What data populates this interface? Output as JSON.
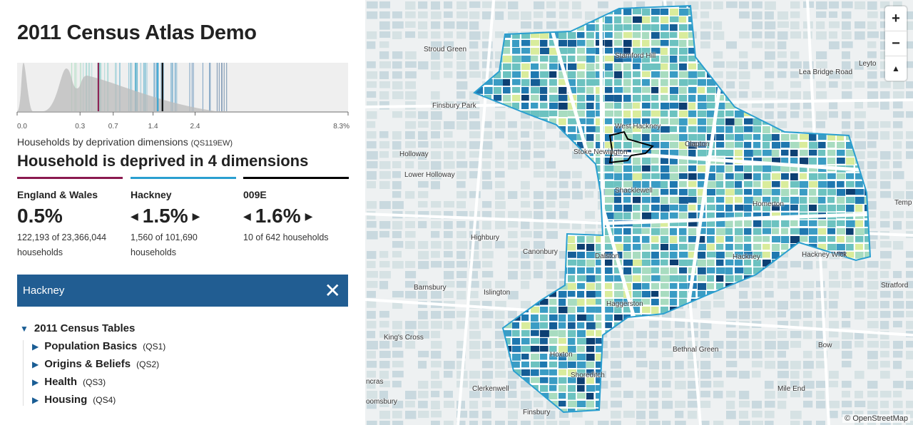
{
  "app": {
    "title": "2011 Census Atlas Demo"
  },
  "chart_data": {
    "type": "strip-density",
    "scale": "sqrt",
    "xlim": [
      0,
      8.3
    ],
    "ticks": [
      "0.0",
      "0.3",
      "0.7",
      "1.4",
      "2.4",
      "8.3%"
    ],
    "tick_values": [
      0,
      0.3,
      0.7,
      1.4,
      2.4,
      8.3
    ],
    "markers": [
      {
        "name": "England & Wales",
        "value": 0.5,
        "color": "#8b1a4f"
      },
      {
        "name": "Hackney",
        "value": 1.5,
        "color": "#2a9fd0"
      },
      {
        "name": "009E",
        "value": 1.6,
        "color": "#000000"
      }
    ]
  },
  "table": {
    "title": "Households by deprivation dimensions",
    "code": "(QS119EW)",
    "category": "Household is deprived in 4 dimensions"
  },
  "stats": [
    {
      "name": "England & Wales",
      "value": "0.5%",
      "count": "122,193 of 23,366,044 households",
      "color": "#8b1a4f",
      "arrows": false
    },
    {
      "name": "Hackney",
      "value": "1.5%",
      "count": "1,560 of 101,690 households",
      "color": "#2a9fd0",
      "arrows": true
    },
    {
      "name": "009E",
      "value": "1.6%",
      "count": "10 of 642 households",
      "color": "#000000",
      "arrows": true
    }
  ],
  "selection": {
    "label": "Hackney",
    "close_icon": "close-icon"
  },
  "tree": {
    "root": "2011 Census Tables",
    "items": [
      {
        "label": "Population Basics",
        "code": "(QS1)"
      },
      {
        "label": "Origins & Beliefs",
        "code": "(QS2)"
      },
      {
        "label": "Health",
        "code": "(QS3)"
      },
      {
        "label": "Housing",
        "code": "(QS4)"
      }
    ]
  },
  "map": {
    "labels": [
      "Stroud Green",
      "Finsbury Park",
      "Stamford Hill",
      "Lea Bridge Road",
      "Leyto",
      "West Hackney",
      "Stoke Newington",
      "Clapton",
      "Holloway",
      "Lower Holloway",
      "Shacklewell",
      "Homerton",
      "Temp",
      "Highbury",
      "Canonbury",
      "Dalston",
      "Hackney",
      "Hackney Wick",
      "Barnsbury",
      "Islington",
      "Stratford",
      "Haggerston",
      "King's Cross",
      "Hoxton",
      "Bethnal Green",
      "Bow",
      "Shoreditch",
      "Clerkenwell",
      "Mile End",
      "Finsbury",
      "ncras",
      "oomsbury"
    ],
    "zoom_in": "+",
    "zoom_out": "−",
    "reset": "▲",
    "attribution": "© OpenStreetMap"
  }
}
